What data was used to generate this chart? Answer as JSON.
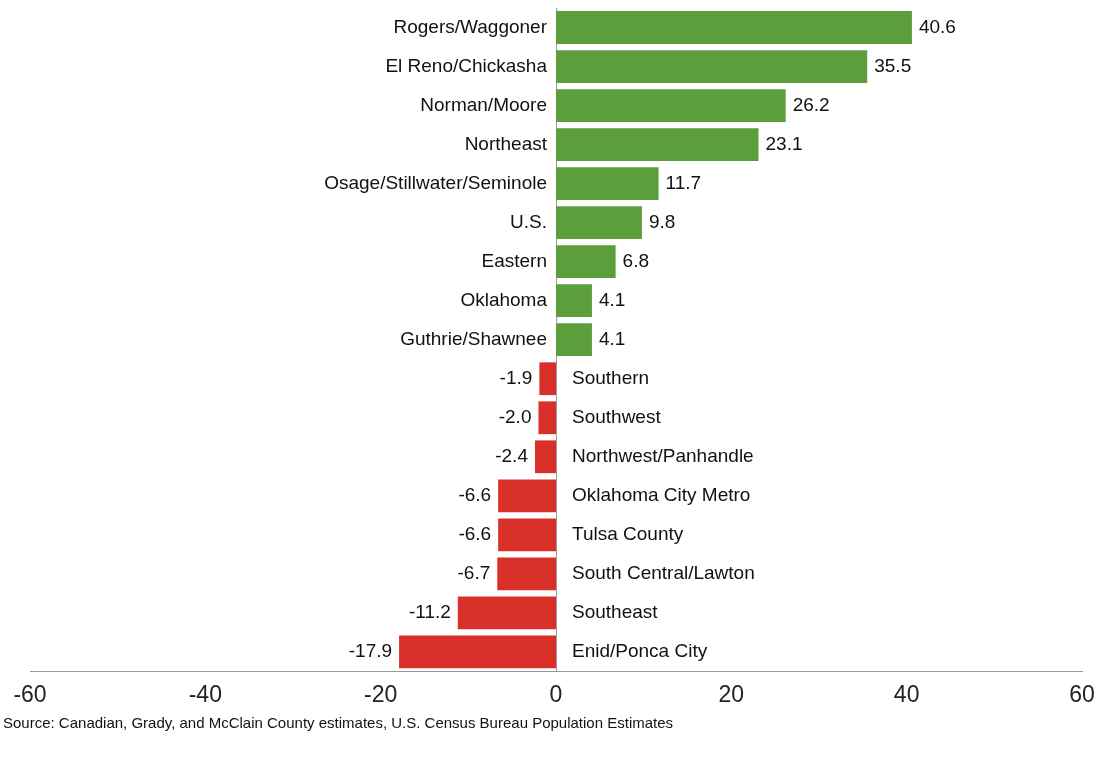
{
  "chart_data": {
    "type": "bar",
    "orientation": "horizontal",
    "categories": [
      "Rogers/Waggoner",
      "El Reno/Chickasha",
      "Norman/Moore",
      "Northeast",
      "Osage/Stillwater/Seminole",
      "U.S.",
      "Eastern",
      "Oklahoma",
      "Guthrie/Shawnee",
      "Southern",
      "Southwest",
      "Northwest/Panhandle",
      "Oklahoma City Metro",
      "Tulsa County",
      "South Central/Lawton",
      "Southeast",
      "Enid/Ponca City"
    ],
    "values": [
      40.6,
      35.5,
      26.2,
      23.1,
      11.7,
      9.8,
      6.8,
      4.1,
      4.1,
      -1.9,
      -2.0,
      -2.4,
      -6.6,
      -6.6,
      -6.7,
      -11.2,
      -17.9
    ],
    "value_labels": [
      "40.6",
      "35.5",
      "26.2",
      "23.1",
      "11.7",
      "9.8",
      "6.8",
      "4.1",
      "4.1",
      "-1.9",
      "-2.0",
      "-2.4",
      "-6.6",
      "-6.6",
      "-6.7",
      "-11.2",
      "-17.9"
    ],
    "colors": [
      "#5c9e3c",
      "#5c9e3c",
      "#5c9e3c",
      "#5c9e3c",
      "#5c9e3c",
      "#5c9e3c",
      "#5c9e3c",
      "#5c9e3c",
      "#5c9e3c",
      "#d9302a",
      "#d9302a",
      "#d9302a",
      "#d9302a",
      "#d9302a",
      "#d9302a",
      "#d9302a",
      "#d9302a"
    ],
    "xlim": [
      -60,
      60
    ],
    "xticks": [
      -60,
      -40,
      -20,
      0,
      20,
      40,
      60
    ],
    "grid": false,
    "legend": false,
    "annotations": [
      "Source: Canadian, Grady, and McClain County estimates, U.S. Census Bureau Population Estimates"
    ]
  }
}
